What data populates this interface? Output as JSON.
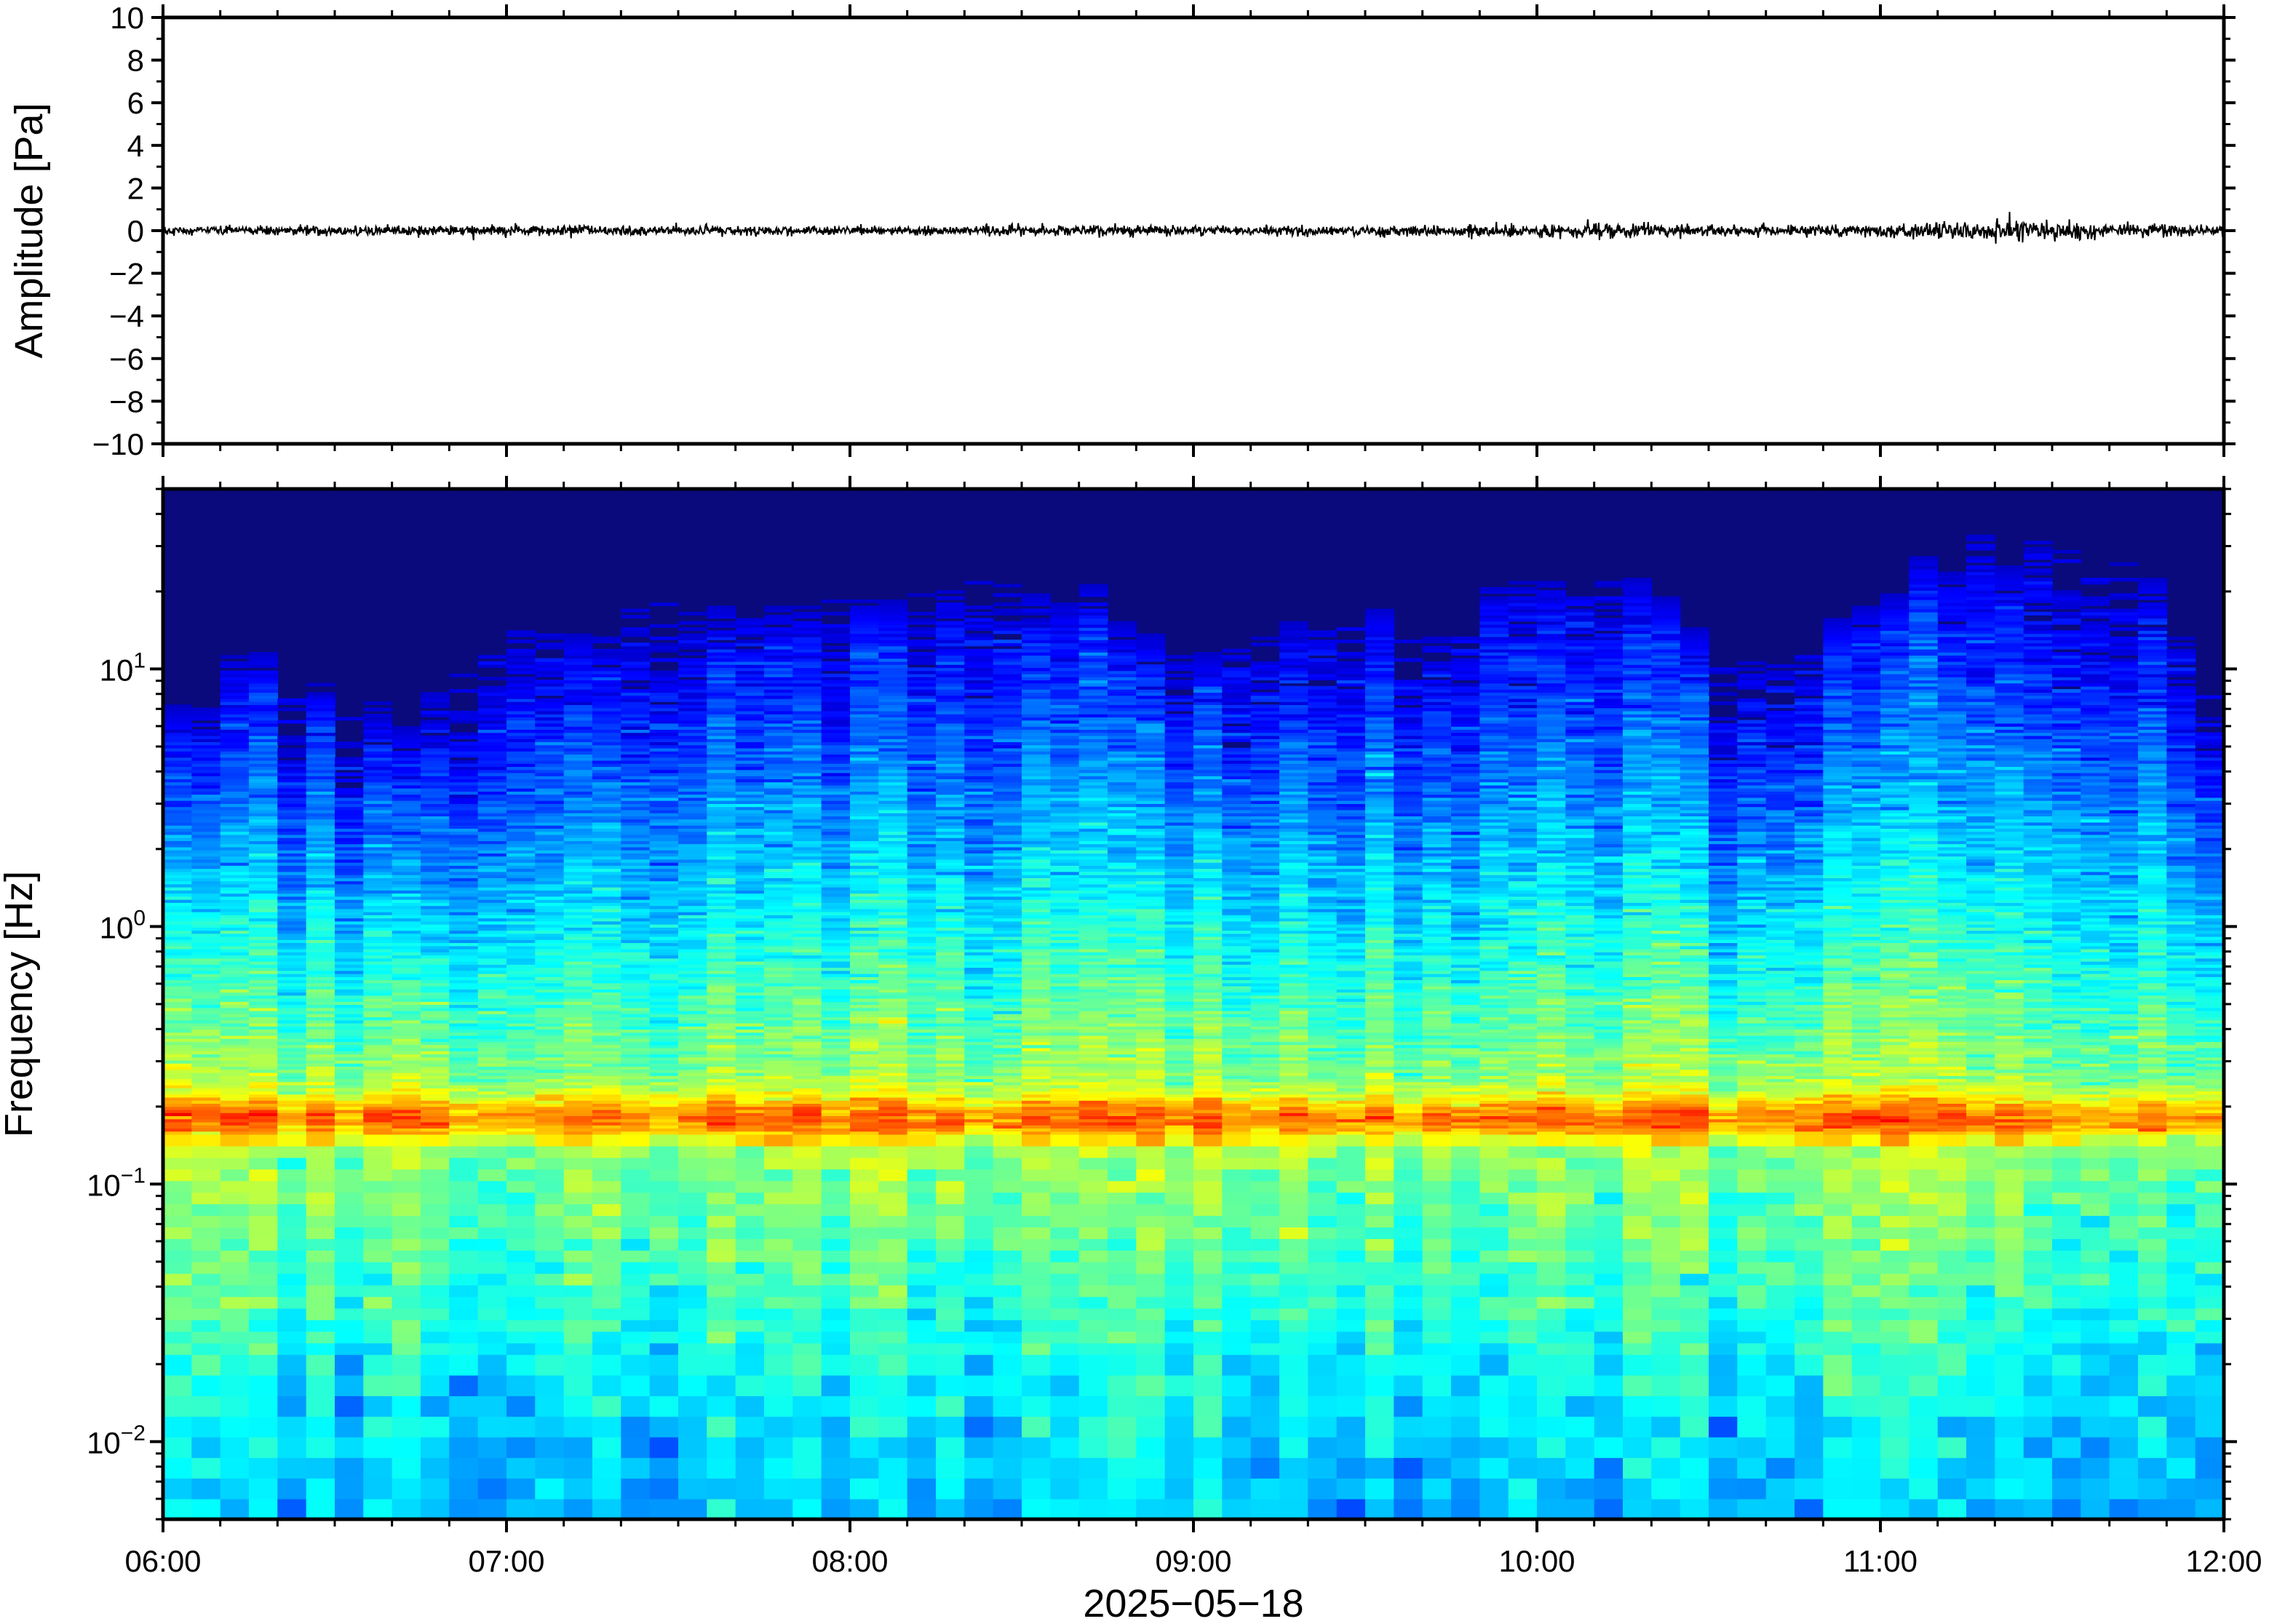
{
  "chart_data": [
    {
      "type": "line",
      "panel": "waveform",
      "ylabel": "Amplitude [Pa]",
      "ylim": [
        -10,
        10
      ],
      "yticks": [
        -10,
        -8,
        -6,
        -4,
        -2,
        0,
        2,
        4,
        6,
        8,
        10
      ],
      "ytick_labels": [
        "−10",
        "−8",
        "−6",
        "−4",
        "−2",
        "0",
        "2",
        "4",
        "6",
        "8",
        "10"
      ],
      "xlim": [
        "06:00",
        "12:00"
      ],
      "grid": false,
      "series": [
        {
          "noise_envelope": {
            "x": [
              "06:00",
              "06:30",
              "07:00",
              "07:30",
              "08:00",
              "08:30",
              "09:00",
              "09:30",
              "10:00",
              "10:15",
              "10:30",
              "11:00",
              "11:10",
              "11:20",
              "11:30",
              "11:40",
              "12:00"
            ],
            "amplitude": [
              0.25,
              0.25,
              0.25,
              0.25,
              0.25,
              0.25,
              0.25,
              0.25,
              0.35,
              0.4,
              0.3,
              0.3,
              0.45,
              0.6,
              0.55,
              0.4,
              0.3
            ]
          },
          "color": "#000000"
        }
      ]
    },
    {
      "type": "heatmap",
      "panel": "spectrogram",
      "ylabel": "Frequency [Hz]",
      "yscale": "log",
      "ylim": [
        0.005,
        50
      ],
      "yticks": [
        0.01,
        0.1,
        1,
        10
      ],
      "ytick_labels": [
        {
          "base": "10",
          "exp": "−2"
        },
        {
          "base": "10",
          "exp": "−1"
        },
        {
          "base": "10",
          "exp": "0"
        },
        {
          "base": "10",
          "exp": "1"
        }
      ],
      "xlabel": "2025−05−18",
      "xlim": [
        "06:00",
        "12:00"
      ],
      "xticks": [
        "06:00",
        "07:00",
        "08:00",
        "09:00",
        "10:00",
        "11:00",
        "12:00"
      ],
      "colormap": "jet",
      "colors": {
        "background": "#0a0a7c",
        "peak_band": "#ff8a2a",
        "low_band": "#35b5f0"
      },
      "microseism_peak_hz": 0.18,
      "upper_energy_limit_hz": {
        "x": [
          "06:00",
          "06:15",
          "06:30",
          "06:45",
          "07:00",
          "07:15",
          "07:30",
          "07:45",
          "08:00",
          "08:15",
          "08:30",
          "08:45",
          "09:00",
          "09:15",
          "09:30",
          "09:45",
          "10:00",
          "10:15",
          "10:30",
          "10:45",
          "11:00",
          "11:15",
          "11:30",
          "11:45",
          "12:00"
        ],
        "values": [
          4,
          8,
          6,
          5,
          12,
          10,
          14,
          13,
          15,
          16,
          17,
          14,
          9,
          10,
          13,
          11,
          17,
          18,
          10,
          8,
          14,
          22,
          21,
          18,
          6
        ]
      }
    }
  ]
}
